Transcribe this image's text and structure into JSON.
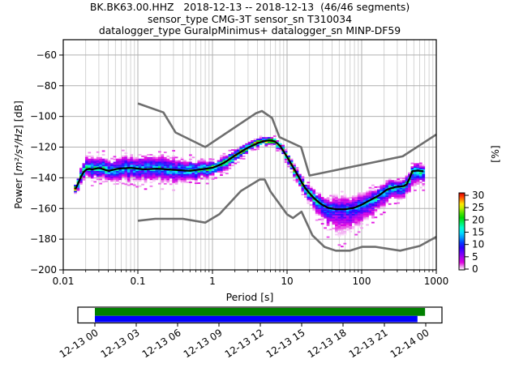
{
  "title": {
    "line1": "BK.BK63.00.HHZ   2018-12-13 -- 2018-12-13  (46/46 segments)",
    "line2": "sensor_type CMG-3T sensor_sn T310034",
    "line3": "datalogger_type GuralpMinimus+ datalogger_sn MINP-DF59"
  },
  "chart_data": {
    "type": "heatmap",
    "description": "Probabilistic power spectral density (PPSD) of seismic channel BK.BK63.00.HHZ with Peterson new high/low noise model curves and black mode line",
    "segments": "46/46",
    "xlabel": "Period [s]",
    "ylabel_prefix": "Power [",
    "ylabel_math": "m²/s⁴/Hz",
    "ylabel_suffix": "] [dB]",
    "xscale": "log",
    "xlim": [
      0.01,
      1000
    ],
    "ylim": [
      -200,
      -50
    ],
    "x_ticks": [
      0.01,
      0.1,
      1,
      10,
      100,
      1000
    ],
    "x_ticklabels": [
      "0.01",
      "0.1",
      "1",
      "10",
      "100",
      "1000"
    ],
    "y_ticks": [
      -200,
      -180,
      -160,
      -140,
      -120,
      -100,
      -80,
      -60
    ],
    "y_ticklabels": [
      "−200",
      "−180",
      "−160",
      "−140",
      "−120",
      "−100",
      "−80",
      "−60"
    ],
    "grid": "both",
    "grid_color": "#b0b0b0",
    "minor_grid_color": "#c9c9c9",
    "frame_color": "#000000",
    "noise_model_color": "#6e6e6e",
    "mode_line_color": "#000000",
    "colorbar": {
      "label": "[%]",
      "lim": [
        0,
        30
      ],
      "ticks": [
        0,
        5,
        10,
        15,
        20,
        25,
        30
      ],
      "stops": [
        [
          0,
          "#ffffff"
        ],
        [
          1,
          "#f2b3f2"
        ],
        [
          3,
          "#e000e0"
        ],
        [
          5,
          "#aa00ee"
        ],
        [
          7,
          "#6600ff"
        ],
        [
          9,
          "#2a00ff"
        ],
        [
          11,
          "#0040ff"
        ],
        [
          13,
          "#0099ff"
        ],
        [
          15,
          "#00e0ff"
        ],
        [
          17,
          "#00ffcc"
        ],
        [
          19,
          "#00f060"
        ],
        [
          21,
          "#00d800"
        ],
        [
          23,
          "#55e400"
        ],
        [
          25,
          "#c8f000"
        ],
        [
          26.5,
          "#ffe800"
        ],
        [
          28,
          "#ff9100"
        ],
        [
          29.5,
          "#ff3800"
        ],
        [
          31,
          "#d40000"
        ]
      ]
    },
    "ppsd": {
      "periods": [
        0.0145,
        0.016,
        0.018,
        0.021,
        0.025,
        0.03,
        0.04,
        0.055,
        0.08,
        0.12,
        0.18,
        0.25,
        0.35,
        0.5,
        0.7,
        1.0,
        1.4,
        2.0,
        2.8,
        4.0,
        5.0,
        6.0,
        7.0,
        8.0,
        10,
        13,
        17,
        22,
        28,
        35,
        45,
        60,
        80,
        100,
        130,
        170,
        220,
        280,
        360,
        430,
        445,
        560,
        680
      ],
      "mode_db": [
        -147.5,
        -143,
        -137,
        -134,
        -134.5,
        -133.5,
        -135.5,
        -134,
        -133.5,
        -134.5,
        -134,
        -134.5,
        -135,
        -135.5,
        -134.5,
        -133.5,
        -130.5,
        -125.5,
        -121,
        -117.5,
        -116,
        -115.5,
        -116.5,
        -119,
        -126.5,
        -136,
        -146,
        -152.5,
        -157,
        -159.5,
        -160.5,
        -160.5,
        -159.5,
        -157.5,
        -154.5,
        -151.5,
        -147.5,
        -146,
        -145.5,
        -143.5,
        -135.8,
        -135.3,
        -135.8
      ],
      "spread_above_db": [
        3,
        4,
        6,
        8,
        8,
        8,
        8,
        8.5,
        9,
        9,
        9,
        9,
        8.5,
        6.5,
        5.5,
        5,
        4.5,
        4,
        3.5,
        3,
        3,
        3,
        3,
        3,
        3.5,
        3.5,
        4,
        5,
        6.5,
        7.5,
        8,
        8,
        7.5,
        7,
        6.5,
        6,
        5.5,
        5,
        5,
        5,
        5,
        5,
        5
      ],
      "spread_below_db": [
        3,
        4,
        5,
        6.5,
        7.5,
        7.5,
        8,
        8,
        8.5,
        8.5,
        8.5,
        8.5,
        8,
        7,
        6.5,
        6.5,
        5.5,
        4.5,
        3.5,
        3,
        3,
        3,
        3,
        3.5,
        4,
        4.5,
        5,
        7,
        10,
        13,
        15.5,
        15.5,
        14.5,
        13,
        12,
        10,
        9,
        8.5,
        8,
        8,
        9,
        9,
        9
      ]
    },
    "noise_models": {
      "nhnm": [
        [
          0.1,
          -91.5
        ],
        [
          0.22,
          -97.4
        ],
        [
          0.32,
          -110.5
        ],
        [
          0.8,
          -120.0
        ],
        [
          3.8,
          -98.0
        ],
        [
          4.6,
          -96.5
        ],
        [
          6.3,
          -101.0
        ],
        [
          7.9,
          -113.5
        ],
        [
          15.4,
          -120.0
        ],
        [
          20.0,
          -138.5
        ],
        [
          354.8,
          -126.0
        ],
        [
          1000,
          -111.8
        ]
      ],
      "nlnm": [
        [
          0.1,
          -168.0
        ],
        [
          0.17,
          -166.7
        ],
        [
          0.4,
          -166.7
        ],
        [
          0.8,
          -169.2
        ],
        [
          1.24,
          -163.7
        ],
        [
          2.4,
          -148.6
        ],
        [
          4.3,
          -141.1
        ],
        [
          5.0,
          -141.1
        ],
        [
          6.0,
          -149.0
        ],
        [
          10.0,
          -163.8
        ],
        [
          12.0,
          -166.2
        ],
        [
          15.6,
          -162.1
        ],
        [
          21.9,
          -177.5
        ],
        [
          31.6,
          -185.0
        ],
        [
          45.0,
          -187.5
        ],
        [
          70.0,
          -187.5
        ],
        [
          101.0,
          -185.0
        ],
        [
          154.0,
          -185.0
        ],
        [
          328.0,
          -187.5
        ],
        [
          600.0,
          -184.4
        ],
        [
          1000,
          -178.5
        ]
      ]
    },
    "timeline": {
      "tick_labels": [
        "12-13 00",
        "12-13 03",
        "12-13 06",
        "12-13 09",
        "12-13 12",
        "12-13 15",
        "12-13 18",
        "12-13 21",
        "12-14 00"
      ],
      "hours_span": 24,
      "bars": [
        {
          "name": "coverage-green",
          "color": "#008000",
          "start_hour": 0,
          "end_hour": 23.95
        },
        {
          "name": "coverage-blue",
          "color": "#0000ff",
          "start_hour": 0,
          "end_hour": 23.4
        }
      ]
    }
  }
}
